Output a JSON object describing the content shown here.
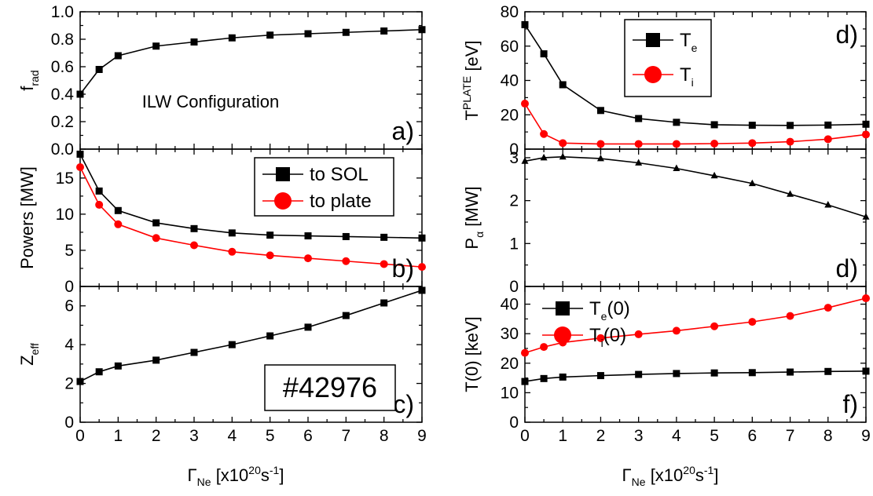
{
  "colors": {
    "black": "#000000",
    "red": "#ff0000"
  },
  "chart_data": [
    {
      "id": "a",
      "type": "line",
      "panel_label": "a)",
      "annotation": "ILW Configuration",
      "ylabel": {
        "main": "f",
        "sub": "rad"
      },
      "ylim": [
        0,
        1.0
      ],
      "yticks": [
        "0.0",
        "0.2",
        "0.4",
        "0.6",
        "0.8",
        "1.0"
      ],
      "ytick_values": [
        0,
        0.2,
        0.4,
        0.6,
        0.8,
        1.0
      ],
      "series": [
        {
          "color": "#000000",
          "marker": "square",
          "x": [
            0,
            0.5,
            1,
            2,
            3,
            4,
            5,
            6,
            7,
            8,
            9
          ],
          "values": [
            0.4,
            0.58,
            0.68,
            0.75,
            0.78,
            0.81,
            0.83,
            0.84,
            0.85,
            0.86,
            0.87
          ]
        }
      ]
    },
    {
      "id": "b",
      "type": "line",
      "panel_label": "b)",
      "ylabel": {
        "main": "Powers [MW]"
      },
      "ylim": [
        0,
        19
      ],
      "yticks": [
        "0",
        "5",
        "10",
        "15"
      ],
      "ytick_values": [
        0,
        5,
        10,
        15
      ],
      "legend": [
        "to SOL",
        "to plate"
      ],
      "series": [
        {
          "name": "to SOL",
          "color": "#000000",
          "marker": "square",
          "x": [
            0,
            0.5,
            1,
            2,
            3,
            4,
            5,
            6,
            7,
            8,
            9
          ],
          "values": [
            18.3,
            13.2,
            10.5,
            8.8,
            8.0,
            7.4,
            7.1,
            7.0,
            6.9,
            6.8,
            6.7
          ]
        },
        {
          "name": "to plate",
          "color": "#ff0000",
          "marker": "circle",
          "x": [
            0,
            0.5,
            1,
            2,
            3,
            4,
            5,
            6,
            7,
            8,
            9
          ],
          "values": [
            16.5,
            11.3,
            8.6,
            6.7,
            5.7,
            4.8,
            4.3,
            3.9,
            3.5,
            3.1,
            2.7
          ]
        }
      ]
    },
    {
      "id": "c",
      "type": "line",
      "panel_label": "c)",
      "annotation": "#42976",
      "ylabel": {
        "main": "Z",
        "sub": "eff"
      },
      "ylim": [
        0,
        7
      ],
      "yticks": [
        "0",
        "2",
        "4",
        "6"
      ],
      "ytick_values": [
        0,
        2,
        4,
        6
      ],
      "series": [
        {
          "color": "#000000",
          "marker": "square",
          "x": [
            0,
            0.5,
            1,
            2,
            3,
            4,
            5,
            6,
            7,
            8,
            9
          ],
          "values": [
            2.1,
            2.6,
            2.9,
            3.2,
            3.6,
            4.0,
            4.45,
            4.9,
            5.5,
            6.15,
            6.8
          ]
        }
      ]
    },
    {
      "id": "d1",
      "type": "line",
      "panel_label": "d)",
      "ylabel": {
        "main": "T",
        "sup": "PLATE",
        "rest": " [eV]"
      },
      "ylim": [
        0,
        80
      ],
      "yticks": [
        "0",
        "20",
        "40",
        "60",
        "80"
      ],
      "ytick_values": [
        0,
        20,
        40,
        60,
        80
      ],
      "legend": [
        "T",
        "T"
      ],
      "legend_subs": [
        "e",
        "i"
      ],
      "series": [
        {
          "name": "Te",
          "color": "#000000",
          "marker": "square",
          "x": [
            0,
            0.5,
            1,
            2,
            3,
            4,
            5,
            6,
            7,
            8,
            9
          ],
          "values": [
            72.5,
            55.5,
            37.5,
            22.5,
            17.8,
            15.6,
            14.2,
            13.9,
            13.8,
            14.0,
            14.5
          ]
        },
        {
          "name": "Ti",
          "color": "#ff0000",
          "marker": "circle",
          "x": [
            0,
            0.5,
            1,
            2,
            3,
            4,
            5,
            6,
            7,
            8,
            9
          ],
          "values": [
            26.5,
            8.8,
            3.5,
            3.0,
            3.0,
            3.0,
            3.2,
            3.5,
            4.3,
            5.8,
            8.5
          ]
        }
      ]
    },
    {
      "id": "d2",
      "type": "line",
      "panel_label": "d)",
      "ylabel": {
        "main": "P",
        "sub": "α",
        "rest": " [MW]"
      },
      "ylim": [
        0,
        3.2
      ],
      "yticks": [
        "0",
        "1",
        "2",
        "3"
      ],
      "ytick_values": [
        0,
        1,
        2,
        3
      ],
      "series": [
        {
          "color": "#000000",
          "marker": "triangle",
          "x": [
            0,
            0.5,
            1,
            2,
            3,
            4,
            5,
            6,
            7,
            8,
            9
          ],
          "values": [
            2.92,
            3.0,
            3.02,
            2.98,
            2.88,
            2.75,
            2.58,
            2.4,
            2.15,
            1.9,
            1.62
          ]
        }
      ]
    },
    {
      "id": "f",
      "type": "line",
      "panel_label": "f)",
      "ylabel": {
        "main": "T(0) [keV]"
      },
      "ylim": [
        0,
        46
      ],
      "yticks": [
        "0",
        "10",
        "20",
        "30",
        "40"
      ],
      "ytick_values": [
        0,
        10,
        20,
        30,
        40
      ],
      "legend": [
        "T",
        "T"
      ],
      "legend_subs": [
        "e",
        "i"
      ],
      "legend_suffix": "(0)",
      "series": [
        {
          "name": "Te(0)",
          "color": "#000000",
          "marker": "square",
          "x": [
            0,
            0.5,
            1,
            2,
            3,
            4,
            5,
            6,
            7,
            8,
            9
          ],
          "values": [
            13.8,
            14.8,
            15.3,
            15.8,
            16.2,
            16.5,
            16.7,
            16.8,
            17.0,
            17.2,
            17.3
          ]
        },
        {
          "name": "Ti(0)",
          "color": "#ff0000",
          "marker": "circle",
          "x": [
            0,
            0.5,
            1,
            2,
            3,
            4,
            5,
            6,
            7,
            8,
            9
          ],
          "values": [
            23.5,
            25.5,
            27.0,
            28.5,
            29.8,
            31.0,
            32.5,
            34.0,
            36.0,
            38.8,
            42.0
          ]
        }
      ]
    }
  ],
  "xaxis": {
    "xlim": [
      0,
      9
    ],
    "ticks": [
      "0",
      "1",
      "2",
      "3",
      "4",
      "5",
      "6",
      "7",
      "8",
      "9"
    ],
    "label": {
      "gamma": "Γ",
      "sub": "Ne",
      "pre": " [x10",
      "sup": "20",
      "mid": "s",
      "sup2": "-1",
      "post": "]"
    }
  }
}
